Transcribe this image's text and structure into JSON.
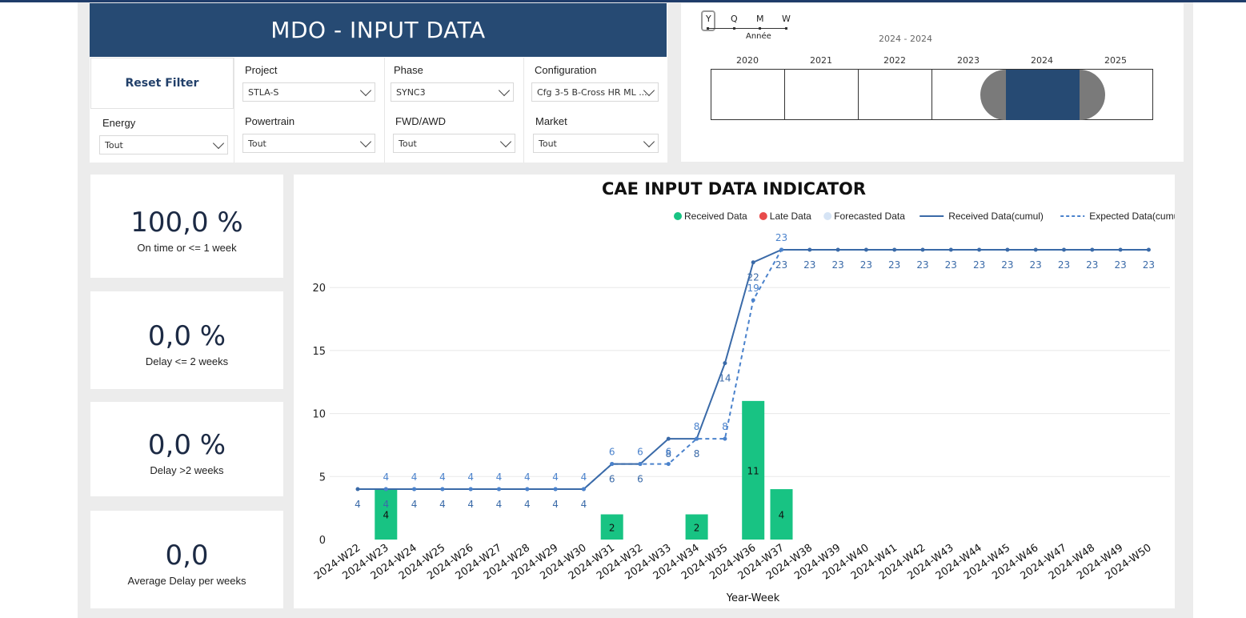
{
  "header": {
    "title": "MDO - INPUT DATA",
    "reset_label": "Reset Filter"
  },
  "filters": [
    {
      "key": "project",
      "label": "Project",
      "value": "STLA-S"
    },
    {
      "key": "phase",
      "label": "Phase",
      "value": "SYNC3"
    },
    {
      "key": "configuration",
      "label": "Configuration",
      "value": "Cfg 3-5 B-Cross HR ML ..."
    },
    {
      "key": "energy",
      "label": "Energy",
      "value": "Tout"
    },
    {
      "key": "powertrain",
      "label": "Powertrain",
      "value": "Tout"
    },
    {
      "key": "fwd_awd",
      "label": "FWD/AWD",
      "value": "Tout"
    },
    {
      "key": "market",
      "label": "Market",
      "value": "Tout"
    }
  ],
  "timeline": {
    "granularity": [
      "Y",
      "Q",
      "M",
      "W"
    ],
    "selected_granularity": "Y",
    "granularity_label": "Année",
    "range_label": "2024 - 2024",
    "years": [
      "2020",
      "2021",
      "2022",
      "2023",
      "2024",
      "2025"
    ],
    "selected_year": "2024",
    "colors": {
      "selected": "#264a73",
      "handle": "#7a7a7a"
    }
  },
  "kpis": [
    {
      "value": "100,0 %",
      "caption": "On time or <= 1 week"
    },
    {
      "value": "0,0 %",
      "caption": "Delay <= 2 weeks"
    },
    {
      "value": "0,0 %",
      "caption": "Delay >2 weeks"
    },
    {
      "value": "0,0",
      "caption": "Average Delay per weeks"
    }
  ],
  "chart_data": {
    "type": "bar+line",
    "title": "CAE INPUT DATA INDICATOR",
    "xlabel": "Year-Week",
    "ylabel": "",
    "ylim": [
      0,
      23
    ],
    "yticks": [
      0,
      5,
      10,
      15,
      20
    ],
    "grid": true,
    "legend_position": "top-right",
    "categories": [
      "2024-W22",
      "2024-W23",
      "2024-W24",
      "2024-W25",
      "2024-W26",
      "2024-W27",
      "2024-W28",
      "2024-W29",
      "2024-W30",
      "2024-W31",
      "2024-W32",
      "2024-W33",
      "2024-W34",
      "2024-W35",
      "2024-W36",
      "2024-W37",
      "2024-W38",
      "2024-W39",
      "2024-W40",
      "2024-W41",
      "2024-W42",
      "2024-W43",
      "2024-W44",
      "2024-W45",
      "2024-W46",
      "2024-W47",
      "2024-W48",
      "2024-W49",
      "2024-W50"
    ],
    "legend": [
      {
        "name": "Received Data",
        "kind": "dot",
        "color": "#18c383"
      },
      {
        "name": "Late Data",
        "kind": "dot",
        "color": "#e84b4b"
      },
      {
        "name": "Forecasted Data",
        "kind": "dot",
        "color": "#d6e4f5"
      },
      {
        "name": "Received Data(cumul)",
        "kind": "line",
        "color": "#3a6aa8"
      },
      {
        "name": "Expected Data(cumul)",
        "kind": "dash",
        "color": "#4a82cc"
      }
    ],
    "series": [
      {
        "name": "Received Data",
        "type": "bar",
        "color": "#18c383",
        "values": [
          null,
          4,
          null,
          null,
          null,
          null,
          null,
          null,
          null,
          2,
          null,
          null,
          2,
          null,
          11,
          4,
          null,
          null,
          null,
          null,
          null,
          null,
          null,
          null,
          null,
          null,
          null,
          null,
          null
        ]
      },
      {
        "name": "Received Data(cumul)",
        "type": "line",
        "color": "#3a6aa8",
        "values": [
          4,
          4,
          4,
          4,
          4,
          4,
          4,
          4,
          4,
          6,
          6,
          8,
          8,
          14,
          22,
          23,
          23,
          23,
          23,
          23,
          23,
          23,
          23,
          23,
          23,
          23,
          23,
          23,
          23
        ]
      },
      {
        "name": "Expected Data(cumul)",
        "type": "dashed-line",
        "color": "#4a82cc",
        "values": [
          null,
          4,
          4,
          4,
          4,
          4,
          4,
          4,
          4,
          6,
          6,
          6,
          8,
          8,
          19,
          23,
          null,
          null,
          null,
          null,
          null,
          null,
          null,
          null,
          null,
          null,
          null,
          null,
          null
        ]
      }
    ]
  }
}
